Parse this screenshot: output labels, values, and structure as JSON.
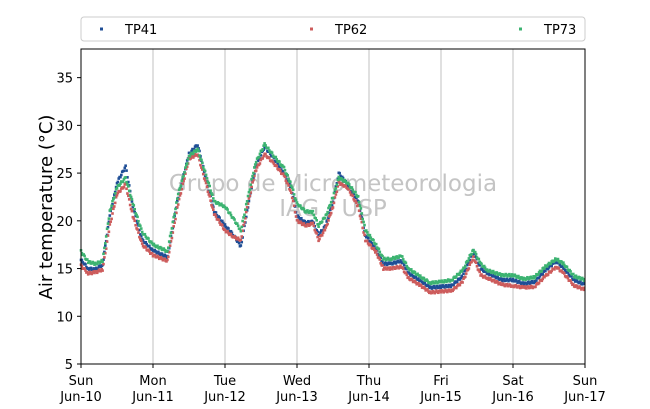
{
  "chart_data": {
    "type": "scatter",
    "title": "",
    "ylabel": "Air temperature (°C)",
    "xlabel": "",
    "ylim": [
      5,
      38
    ],
    "xlim": [
      0,
      7
    ],
    "y_ticks": [
      5,
      10,
      15,
      20,
      25,
      30,
      35
    ],
    "x_ticks": [
      {
        "x": 0,
        "day": "Sun",
        "date": "Jun-10"
      },
      {
        "x": 1,
        "day": "Mon",
        "date": "Jun-11"
      },
      {
        "x": 2,
        "day": "Tue",
        "date": "Jun-12"
      },
      {
        "x": 3,
        "day": "Wed",
        "date": "Jun-13"
      },
      {
        "x": 4,
        "day": "Thu",
        "date": "Jun-14"
      },
      {
        "x": 5,
        "day": "Fri",
        "date": "Jun-15"
      },
      {
        "x": 6,
        "day": "Sat",
        "date": "Jun-16"
      },
      {
        "x": 7,
        "day": "Sun",
        "date": "Jun-17"
      }
    ],
    "grid": "vertical",
    "legend_position": "top",
    "watermark": [
      "Grupo de Micrometeorologia",
      "IAG / USP"
    ],
    "series": [
      {
        "name": "TP41",
        "color": "#1f4e96",
        "points": [
          [
            0,
            15.9
          ],
          [
            0.1,
            15.0
          ],
          [
            0.2,
            14.9
          ],
          [
            0.3,
            15.4
          ],
          [
            0.4,
            20.5
          ],
          [
            0.5,
            24.0
          ],
          [
            0.62,
            25.7
          ],
          [
            0.72,
            21.5
          ],
          [
            0.85,
            18.0
          ],
          [
            1.0,
            16.9
          ],
          [
            1.2,
            16.2
          ],
          [
            1.35,
            22.5
          ],
          [
            1.5,
            27.0
          ],
          [
            1.62,
            28.0
          ],
          [
            1.75,
            24.0
          ],
          [
            1.85,
            21.0
          ],
          [
            2.0,
            19.5
          ],
          [
            2.12,
            18.5
          ],
          [
            2.22,
            17.3
          ],
          [
            2.32,
            21.5
          ],
          [
            2.42,
            25.5
          ],
          [
            2.55,
            27.8
          ],
          [
            2.68,
            26.5
          ],
          [
            2.82,
            25.0
          ],
          [
            2.92,
            23.5
          ],
          [
            3.0,
            20.5
          ],
          [
            3.12,
            19.8
          ],
          [
            3.22,
            19.9
          ],
          [
            3.3,
            18.5
          ],
          [
            3.4,
            19.5
          ],
          [
            3.5,
            22.0
          ],
          [
            3.58,
            25.0
          ],
          [
            3.7,
            23.8
          ],
          [
            3.85,
            22.0
          ],
          [
            3.95,
            18.5
          ],
          [
            4.1,
            17.0
          ],
          [
            4.2,
            15.5
          ],
          [
            4.3,
            15.5
          ],
          [
            4.45,
            15.8
          ],
          [
            4.55,
            14.5
          ],
          [
            4.7,
            13.8
          ],
          [
            4.85,
            13.0
          ],
          [
            5.0,
            13.1
          ],
          [
            5.15,
            13.2
          ],
          [
            5.3,
            14.2
          ],
          [
            5.45,
            16.8
          ],
          [
            5.55,
            15.0
          ],
          [
            5.65,
            14.5
          ],
          [
            5.85,
            13.8
          ],
          [
            6.0,
            13.8
          ],
          [
            6.15,
            13.4
          ],
          [
            6.3,
            13.6
          ],
          [
            6.45,
            14.8
          ],
          [
            6.6,
            15.8
          ],
          [
            6.7,
            15.0
          ],
          [
            6.85,
            13.8
          ],
          [
            7.0,
            13.3
          ]
        ]
      },
      {
        "name": "TP62",
        "color": "#cd5c5c",
        "points": [
          [
            0,
            15.3
          ],
          [
            0.1,
            14.5
          ],
          [
            0.2,
            14.6
          ],
          [
            0.3,
            14.9
          ],
          [
            0.4,
            19.5
          ],
          [
            0.5,
            22.8
          ],
          [
            0.62,
            23.8
          ],
          [
            0.72,
            20.5
          ],
          [
            0.85,
            17.5
          ],
          [
            1.0,
            16.4
          ],
          [
            1.2,
            15.8
          ],
          [
            1.35,
            21.8
          ],
          [
            1.5,
            26.5
          ],
          [
            1.62,
            27.0
          ],
          [
            1.75,
            23.5
          ],
          [
            1.85,
            20.7
          ],
          [
            2.0,
            19.0
          ],
          [
            2.12,
            18.3
          ],
          [
            2.22,
            18.0
          ],
          [
            2.32,
            21.8
          ],
          [
            2.42,
            25.2
          ],
          [
            2.55,
            27.0
          ],
          [
            2.68,
            26.0
          ],
          [
            2.82,
            24.7
          ],
          [
            2.92,
            23.0
          ],
          [
            3.0,
            20.0
          ],
          [
            3.12,
            19.5
          ],
          [
            3.22,
            19.7
          ],
          [
            3.3,
            18.0
          ],
          [
            3.4,
            19.2
          ],
          [
            3.5,
            21.5
          ],
          [
            3.58,
            24.0
          ],
          [
            3.7,
            23.5
          ],
          [
            3.85,
            21.5
          ],
          [
            3.95,
            18.0
          ],
          [
            4.1,
            16.7
          ],
          [
            4.2,
            15.0
          ],
          [
            4.3,
            15.0
          ],
          [
            4.45,
            15.2
          ],
          [
            4.55,
            14.0
          ],
          [
            4.7,
            13.3
          ],
          [
            4.85,
            12.5
          ],
          [
            5.0,
            12.6
          ],
          [
            5.15,
            12.7
          ],
          [
            5.3,
            13.6
          ],
          [
            5.45,
            16.2
          ],
          [
            5.55,
            14.3
          ],
          [
            5.65,
            14.0
          ],
          [
            5.85,
            13.3
          ],
          [
            6.0,
            13.2
          ],
          [
            6.15,
            13.0
          ],
          [
            6.3,
            13.1
          ],
          [
            6.45,
            14.2
          ],
          [
            6.6,
            15.2
          ],
          [
            6.7,
            14.5
          ],
          [
            6.85,
            13.2
          ],
          [
            7.0,
            12.8
          ]
        ]
      },
      {
        "name": "TP73",
        "color": "#3cb371",
        "points": [
          [
            0,
            16.8
          ],
          [
            0.1,
            15.7
          ],
          [
            0.2,
            15.5
          ],
          [
            0.3,
            15.8
          ],
          [
            0.4,
            21.0
          ],
          [
            0.5,
            23.5
          ],
          [
            0.62,
            24.5
          ],
          [
            0.72,
            21.8
          ],
          [
            0.85,
            18.8
          ],
          [
            1.0,
            17.5
          ],
          [
            1.2,
            16.8
          ],
          [
            1.35,
            22.8
          ],
          [
            1.5,
            26.8
          ],
          [
            1.62,
            27.5
          ],
          [
            1.75,
            24.5
          ],
          [
            1.85,
            22.0
          ],
          [
            2.0,
            21.5
          ],
          [
            2.12,
            20.2
          ],
          [
            2.22,
            19.0
          ],
          [
            2.32,
            22.5
          ],
          [
            2.42,
            26.0
          ],
          [
            2.55,
            28.0
          ],
          [
            2.68,
            26.8
          ],
          [
            2.82,
            25.5
          ],
          [
            2.92,
            23.8
          ],
          [
            3.0,
            21.8
          ],
          [
            3.12,
            21.0
          ],
          [
            3.22,
            20.9
          ],
          [
            3.3,
            19.5
          ],
          [
            3.4,
            20.5
          ],
          [
            3.5,
            22.5
          ],
          [
            3.58,
            24.5
          ],
          [
            3.7,
            24.0
          ],
          [
            3.85,
            22.5
          ],
          [
            3.95,
            19.0
          ],
          [
            4.1,
            17.5
          ],
          [
            4.2,
            16.0
          ],
          [
            4.3,
            16.0
          ],
          [
            4.45,
            16.3
          ],
          [
            4.55,
            15.0
          ],
          [
            4.7,
            14.2
          ],
          [
            4.85,
            13.5
          ],
          [
            5.0,
            13.6
          ],
          [
            5.15,
            13.8
          ],
          [
            5.3,
            14.8
          ],
          [
            5.45,
            17.0
          ],
          [
            5.55,
            15.5
          ],
          [
            5.65,
            14.8
          ],
          [
            5.85,
            14.3
          ],
          [
            6.0,
            14.3
          ],
          [
            6.15,
            13.9
          ],
          [
            6.3,
            14.1
          ],
          [
            6.45,
            15.2
          ],
          [
            6.6,
            16.0
          ],
          [
            6.7,
            15.5
          ],
          [
            6.85,
            14.2
          ],
          [
            7.0,
            13.8
          ]
        ]
      }
    ]
  }
}
